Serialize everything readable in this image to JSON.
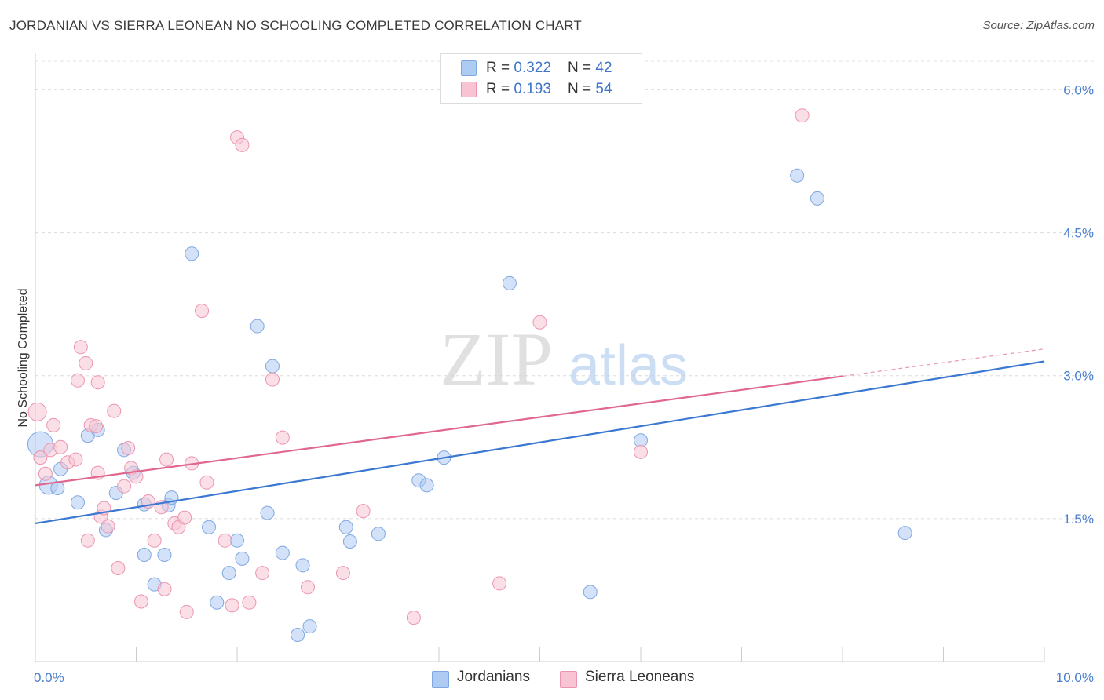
{
  "title": "JORDANIAN VS SIERRA LEONEAN NO SCHOOLING COMPLETED CORRELATION CHART",
  "source": "Source: ZipAtlas.com",
  "watermark": {
    "zip": "ZIP",
    "atlas": "atlas"
  },
  "legend": {
    "rows": [
      {
        "r_label": "R = ",
        "r_value": "0.322",
        "n_label": "N = ",
        "n_value": "42",
        "color": "#aecbf3",
        "border": "#7fa8e0"
      },
      {
        "r_label": "R = ",
        "r_value": "0.193",
        "n_label": "N = ",
        "n_value": "54",
        "color": "#f8c4d4",
        "border": "#ec95b0"
      }
    ]
  },
  "bottom_legend": [
    {
      "label": "Jordanians",
      "color": "#aecbf3",
      "border": "#7fa8e0"
    },
    {
      "label": "Sierra Leoneans",
      "color": "#f8c4d4",
      "border": "#ec95b0"
    }
  ],
  "chart_data": {
    "type": "scatter",
    "title": "JORDANIAN VS SIERRA LEONEAN NO SCHOOLING COMPLETED CORRELATION CHART",
    "xlabel": "",
    "ylabel": "No Schooling Completed",
    "xlim": [
      0,
      10
    ],
    "ylim": [
      0,
      6.3
    ],
    "x_tick_labels": [
      "0.0%",
      "10.0%"
    ],
    "y_ticks": [
      {
        "value": 1.5,
        "label": "1.5%"
      },
      {
        "value": 3.0,
        "label": "3.0%"
      },
      {
        "value": 4.5,
        "label": "4.5%"
      },
      {
        "value": 6.0,
        "label": "6.0%"
      }
    ],
    "grid": true,
    "series": [
      {
        "name": "Jordanians",
        "color": "#aecbf3",
        "stroke": "#7fa8e0",
        "trend_color": "#3a78d2",
        "trend": {
          "x0": 0,
          "y0": 1.45,
          "x1": 10,
          "y1": 3.15,
          "solid_until": 10
        },
        "points": [
          [
            0.05,
            2.28,
            3
          ],
          [
            0.13,
            1.85,
            2
          ],
          [
            0.22,
            1.82,
            1
          ],
          [
            0.25,
            2.02,
            1
          ],
          [
            0.42,
            1.67,
            1
          ],
          [
            0.52,
            2.37,
            1
          ],
          [
            0.62,
            2.43,
            1
          ],
          [
            0.7,
            1.38,
            1
          ],
          [
            0.8,
            1.77,
            1
          ],
          [
            0.88,
            2.22,
            1
          ],
          [
            0.97,
            1.98,
            1
          ],
          [
            1.08,
            1.65,
            1
          ],
          [
            1.18,
            0.81,
            1
          ],
          [
            1.28,
            1.12,
            1
          ],
          [
            1.32,
            1.64,
            1
          ],
          [
            1.35,
            1.72,
            1
          ],
          [
            1.55,
            4.28,
            1
          ],
          [
            1.72,
            1.41,
            1
          ],
          [
            1.8,
            0.62,
            1
          ],
          [
            1.92,
            0.93,
            1
          ],
          [
            2.0,
            1.27,
            1
          ],
          [
            2.05,
            1.08,
            1
          ],
          [
            2.2,
            3.52,
            1
          ],
          [
            2.3,
            1.56,
            1
          ],
          [
            2.35,
            3.1,
            1
          ],
          [
            2.45,
            1.14,
            1
          ],
          [
            2.6,
            0.28,
            1
          ],
          [
            2.65,
            1.01,
            1
          ],
          [
            2.72,
            0.37,
            1
          ],
          [
            3.08,
            1.41,
            1
          ],
          [
            3.12,
            1.26,
            1
          ],
          [
            3.4,
            1.34,
            1
          ],
          [
            3.8,
            1.9,
            1
          ],
          [
            3.88,
            1.85,
            1
          ],
          [
            4.05,
            2.14,
            1
          ],
          [
            4.7,
            3.97,
            1
          ],
          [
            5.5,
            0.73,
            1
          ],
          [
            6.0,
            2.32,
            1
          ],
          [
            7.55,
            5.1,
            1
          ],
          [
            7.75,
            4.86,
            1
          ],
          [
            8.62,
            1.35,
            1
          ],
          [
            1.08,
            1.12,
            1
          ]
        ]
      },
      {
        "name": "Sierra Leoneans",
        "color": "#f8c4d4",
        "stroke": "#ec95b0",
        "trend_color": "#e0688f",
        "trend": {
          "x0": 0,
          "y0": 1.85,
          "x1": 10,
          "y1": 3.28,
          "solid_until": 8
        },
        "points": [
          [
            0.02,
            2.62,
            2
          ],
          [
            0.05,
            2.14,
            1
          ],
          [
            0.1,
            1.97,
            1
          ],
          [
            0.15,
            2.22,
            1
          ],
          [
            0.18,
            2.48,
            1
          ],
          [
            0.25,
            2.25,
            1
          ],
          [
            0.32,
            2.09,
            1
          ],
          [
            0.4,
            2.12,
            1
          ],
          [
            0.42,
            2.95,
            1
          ],
          [
            0.45,
            3.3,
            1
          ],
          [
            0.5,
            3.13,
            1
          ],
          [
            0.52,
            1.27,
            1
          ],
          [
            0.55,
            2.48,
            1
          ],
          [
            0.6,
            2.47,
            1
          ],
          [
            0.62,
            1.98,
            1
          ],
          [
            0.65,
            1.52,
            1
          ],
          [
            0.68,
            1.61,
            1
          ],
          [
            0.72,
            1.42,
            1
          ],
          [
            0.78,
            2.63,
            1
          ],
          [
            0.82,
            0.98,
            1
          ],
          [
            0.88,
            1.84,
            1
          ],
          [
            0.92,
            2.24,
            1
          ],
          [
            0.95,
            2.03,
            1
          ],
          [
            1.0,
            1.94,
            1
          ],
          [
            1.05,
            0.63,
            1
          ],
          [
            1.12,
            1.68,
            1
          ],
          [
            1.18,
            1.27,
            1
          ],
          [
            1.25,
            1.62,
            1
          ],
          [
            1.28,
            0.76,
            1
          ],
          [
            1.3,
            2.12,
            1
          ],
          [
            1.38,
            1.45,
            1
          ],
          [
            1.42,
            1.41,
            1
          ],
          [
            1.48,
            1.51,
            1
          ],
          [
            1.5,
            0.52,
            1
          ],
          [
            1.55,
            2.08,
            1
          ],
          [
            1.65,
            3.68,
            1
          ],
          [
            1.7,
            1.88,
            1
          ],
          [
            1.88,
            1.27,
            1
          ],
          [
            1.95,
            0.59,
            1
          ],
          [
            2.0,
            5.5,
            1
          ],
          [
            2.05,
            5.42,
            1
          ],
          [
            2.12,
            0.62,
            1
          ],
          [
            2.25,
            0.93,
            1
          ],
          [
            2.35,
            2.96,
            1
          ],
          [
            2.45,
            2.35,
            1
          ],
          [
            2.7,
            0.78,
            1
          ],
          [
            3.05,
            0.93,
            1
          ],
          [
            3.25,
            1.58,
            1
          ],
          [
            3.75,
            0.46,
            1
          ],
          [
            4.6,
            0.82,
            1
          ],
          [
            5.0,
            3.56,
            1
          ],
          [
            6.0,
            2.2,
            1
          ],
          [
            7.6,
            5.73,
            1
          ],
          [
            0.62,
            2.93,
            1
          ]
        ]
      }
    ]
  }
}
